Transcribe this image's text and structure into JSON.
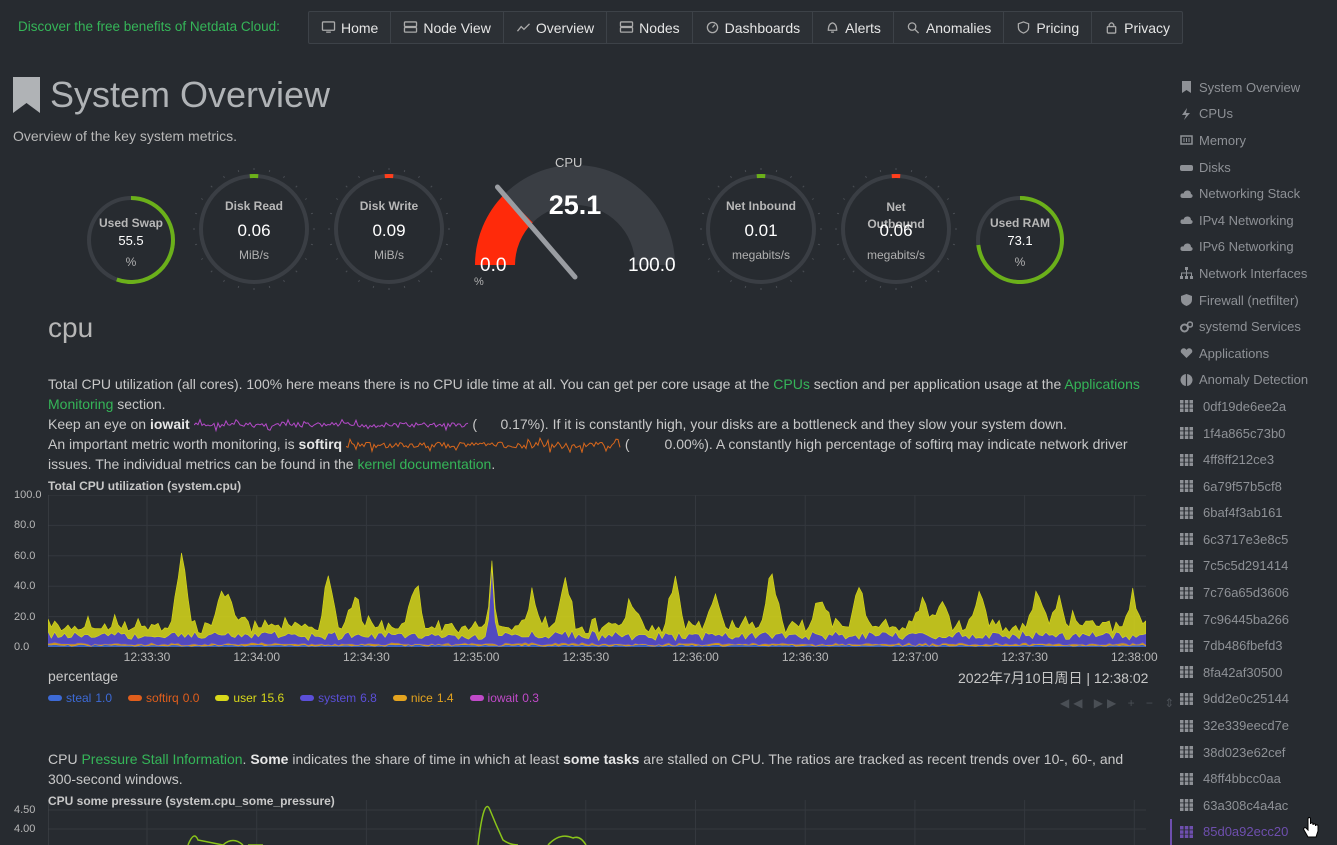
{
  "top": {
    "promo": "Discover the free benefits of Netdata Cloud:",
    "nav": [
      {
        "label": "Home",
        "icon": "monitor-icon"
      },
      {
        "label": "Node View",
        "icon": "server-icon"
      },
      {
        "label": "Overview",
        "icon": "overview-icon"
      },
      {
        "label": "Nodes",
        "icon": "nodes-icon"
      },
      {
        "label": "Dashboards",
        "icon": "dashboard-icon"
      },
      {
        "label": "Alerts",
        "icon": "bell-icon"
      },
      {
        "label": "Anomalies",
        "icon": "anomaly-icon"
      },
      {
        "label": "Pricing",
        "icon": "pricing-icon"
      },
      {
        "label": "Privacy",
        "icon": "lock-icon"
      }
    ]
  },
  "header": {
    "title": "System Overview",
    "subtitle": "Overview of the key system metrics."
  },
  "gauges": {
    "swap": {
      "title": "Used Swap",
      "value": "55.5",
      "unit": "%",
      "fraction": 0.555
    },
    "disk_read": {
      "title": "Disk Read",
      "value": "0.06",
      "unit": "MiB/s"
    },
    "disk_write": {
      "title": "Disk Write",
      "value": "0.09",
      "unit": "MiB/s"
    },
    "cpu": {
      "title": "CPU",
      "value": "25.1",
      "min": "0.0",
      "max": "100.0",
      "unit": "%",
      "fraction": 0.251
    },
    "net_in": {
      "title": "Net Inbound",
      "value": "0.01",
      "unit": "megabits/s"
    },
    "net_out": {
      "title": "Net Outbound",
      "value": "0.06",
      "unit": "megabits/s"
    },
    "ram": {
      "title": "Used RAM",
      "value": "73.1",
      "unit": "%",
      "fraction": 0.731
    }
  },
  "cpu_section": {
    "title": "cpu",
    "p1_a": "Total CPU utilization (all cores). 100% here means there is no CPU idle time at all. You can get per core usage at the ",
    "p1_link1": "CPUs",
    "p1_b": " section and per application usage at the ",
    "p1_link2": "Applications Monitoring",
    "p1_c": " section.",
    "p2_a": "Keep an eye on ",
    "p2_bold": "iowait",
    "p2_val": "0.17%",
    "p2_b": "). If it is constantly high, your disks are a bottleneck and they slow your system down.",
    "p3_a": "An important metric worth monitoring, is ",
    "p3_bold": "softirq",
    "p3_val": "0.00%",
    "p3_b": "). A constantly high percentage of softirq may indicate network driver issues. The individual metrics can be found in the ",
    "p3_link": "kernel documentation",
    "p3_c": "."
  },
  "chart1": {
    "title": "Total CPU utilization (system.cpu)",
    "units": "percentage",
    "datetime": "2022年7月10日周日 | 12:38:02",
    "legend": [
      {
        "name": "steal",
        "value": "1.0",
        "color": "#3d6ad6"
      },
      {
        "name": "softirq",
        "value": "0.0",
        "color": "#e05e1c"
      },
      {
        "name": "user",
        "value": "15.6",
        "color": "#d8d81a"
      },
      {
        "name": "system",
        "value": "6.8",
        "color": "#5b4fd8"
      },
      {
        "name": "nice",
        "value": "1.4",
        "color": "#e3a31f"
      },
      {
        "name": "iowait",
        "value": "0.3",
        "color": "#c04ac8"
      }
    ],
    "yticks": [
      "100.0",
      "80.0",
      "60.0",
      "40.0",
      "20.0",
      "0.0"
    ],
    "xticks": [
      "12:33:30",
      "12:34:00",
      "12:34:30",
      "12:35:00",
      "12:35:30",
      "12:36:00",
      "12:36:30",
      "12:37:00",
      "12:37:30",
      "12:38:00"
    ]
  },
  "pressure": {
    "p_a": "CPU ",
    "p_link": "Pressure Stall Information",
    "p_b": ". ",
    "p_bold1": "Some",
    "p_c": " indicates the share of time in which at least ",
    "p_bold2": "some tasks",
    "p_d": " are stalled on CPU. The ratios are tracked as recent trends over 10-, 60-, and 300-second windows.",
    "chart_title": "CPU some pressure (system.cpu_some_pressure)",
    "yticks": [
      "4.50",
      "4.00"
    ]
  },
  "sidebar": {
    "items": [
      {
        "label": "System Overview",
        "icon": "bookmark-icon"
      },
      {
        "label": "CPUs",
        "icon": "bolt-icon"
      },
      {
        "label": "Memory",
        "icon": "memory-icon"
      },
      {
        "label": "Disks",
        "icon": "disk-icon"
      },
      {
        "label": "Networking Stack",
        "icon": "cloud-icon"
      },
      {
        "label": "IPv4 Networking",
        "icon": "cloud-icon"
      },
      {
        "label": "IPv6 Networking",
        "icon": "cloud-icon"
      },
      {
        "label": "Network Interfaces",
        "icon": "sitemap-icon"
      },
      {
        "label": "Firewall (netfilter)",
        "icon": "shield-icon"
      },
      {
        "label": "systemd Services",
        "icon": "gears-icon"
      },
      {
        "label": "Applications",
        "icon": "heartbeat-icon"
      },
      {
        "label": "Anomaly Detection",
        "icon": "pie-icon"
      }
    ],
    "containers": [
      "0df19de6ee2a",
      "1f4a865c73b0",
      "4ff8ff212ce3",
      "6a79f57b5cf8",
      "6baf4f3ab161",
      "6c3717e3e8c5",
      "7c5c5d291414",
      "7c76a65d3606",
      "7c96445ba266",
      "7db486fbefd3",
      "8fa42af30500",
      "9dd2e0c25144",
      "32e339eecd7e",
      "38d023e62cef",
      "48ff4bbcc0aa",
      "63a308c4a4ac",
      "85d0a92ecc20"
    ]
  }
}
